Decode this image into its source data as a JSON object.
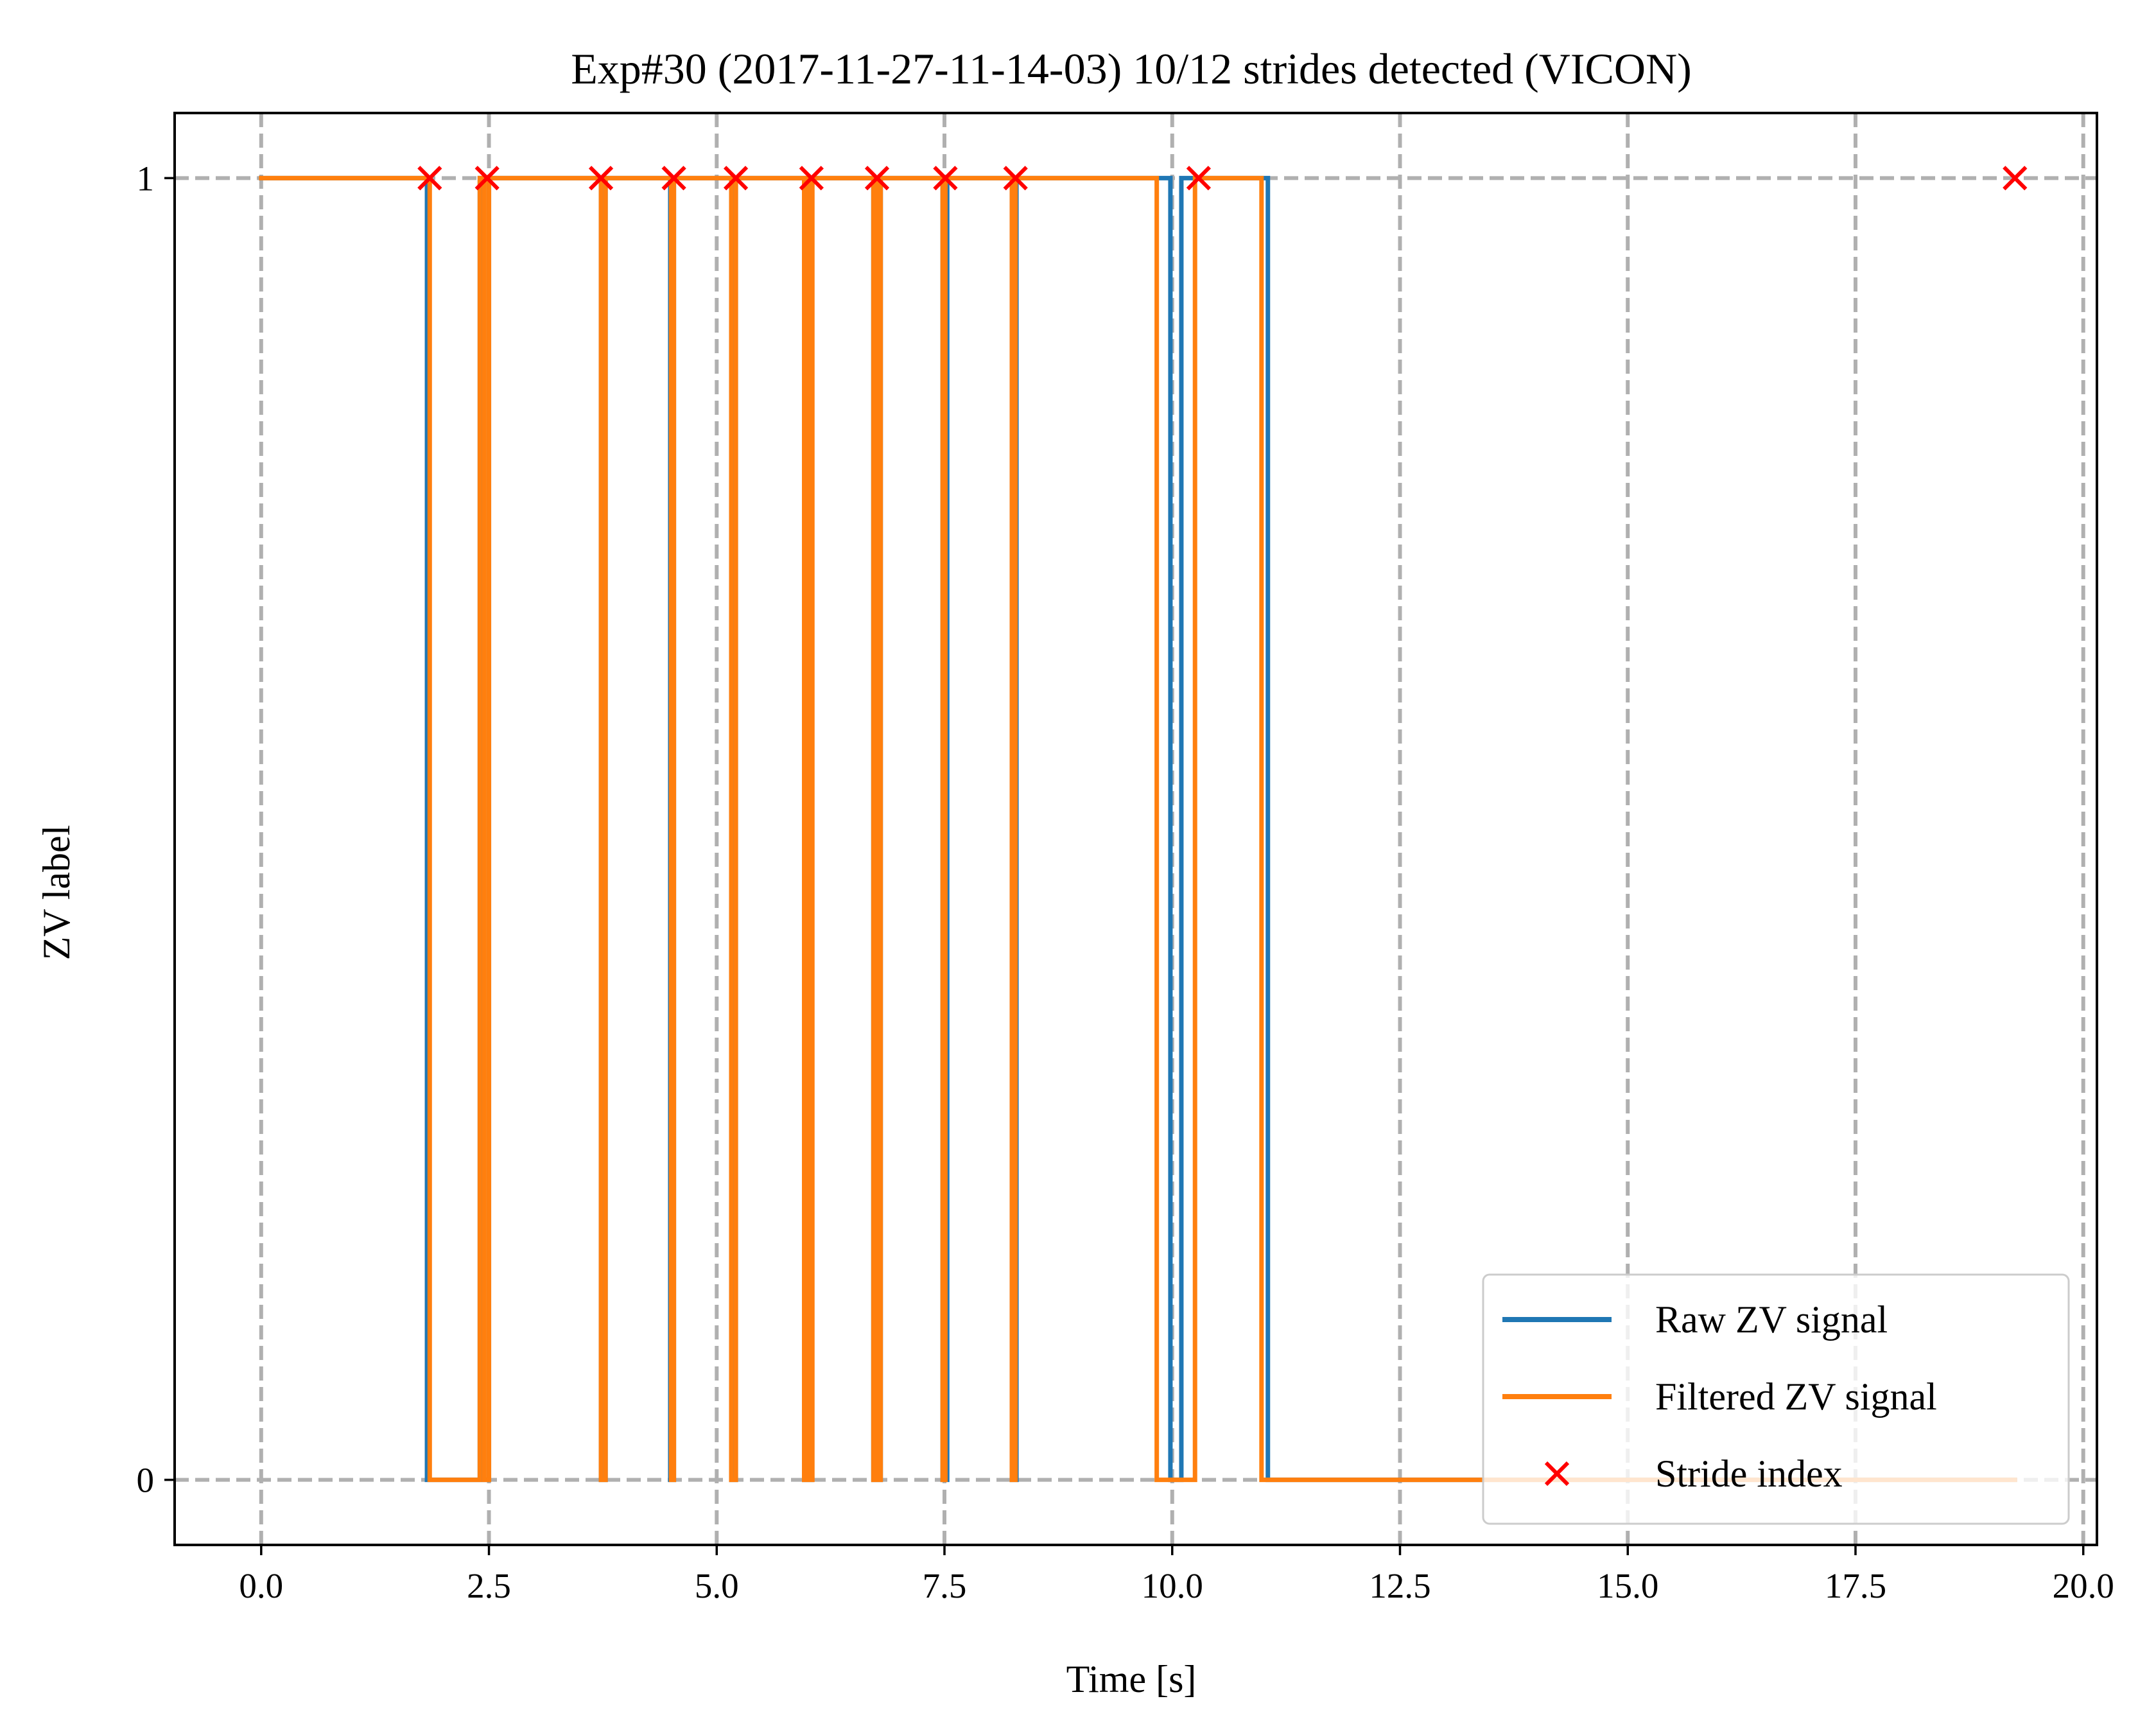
{
  "chart_data": {
    "type": "line",
    "title": "Exp#30 (2017-11-27-11-14-03) 10/12 strides detected (VICON)",
    "xlabel": "Time [s]",
    "ylabel": "ZV label",
    "xlim": [
      -0.95,
      20.15
    ],
    "ylim": [
      -0.05,
      1.05
    ],
    "xticks": [
      0.0,
      2.5,
      5.0,
      7.5,
      10.0,
      12.5,
      15.0,
      17.5,
      20.0
    ],
    "xtick_labels": [
      "0.0",
      "2.5",
      "5.0",
      "7.5",
      "10.0",
      "12.5",
      "15.0",
      "17.5",
      "20.0"
    ],
    "yticks": [
      0,
      1
    ],
    "ytick_labels": [
      "0",
      "1"
    ],
    "grid": true,
    "legend_position": "lower-right",
    "series": [
      {
        "name": "Raw ZV signal",
        "kind": "step",
        "color": "#1f77b4",
        "x": [
          0.0,
          1.82,
          1.82,
          2.4,
          2.4,
          2.44,
          2.44,
          2.5,
          2.5,
          3.73,
          3.73,
          3.78,
          3.78,
          4.49,
          4.49,
          4.53,
          4.53,
          5.16,
          5.16,
          5.21,
          5.21,
          5.96,
          5.96,
          6.04,
          6.04,
          6.72,
          6.72,
          6.8,
          6.8,
          7.48,
          7.48,
          7.53,
          7.53,
          8.24,
          8.24,
          8.29,
          8.29,
          9.98,
          9.98,
          10.1,
          10.1,
          11.05,
          11.05,
          19.25
        ],
        "y": [
          1,
          1,
          0,
          0,
          1,
          1,
          0,
          0,
          1,
          1,
          0,
          0,
          1,
          1,
          0,
          0,
          1,
          1,
          0,
          0,
          1,
          1,
          0,
          0,
          1,
          1,
          0,
          0,
          1,
          1,
          0,
          0,
          1,
          1,
          0,
          0,
          1,
          1,
          0,
          0,
          1,
          1,
          0,
          0
        ]
      },
      {
        "name": "Filtered ZV signal",
        "kind": "step",
        "color": "#ff7f0e",
        "x": [
          0.0,
          1.85,
          1.85,
          2.4,
          2.4,
          2.45,
          2.45,
          2.5,
          2.5,
          3.73,
          3.73,
          3.78,
          3.78,
          4.5,
          4.5,
          4.53,
          4.53,
          5.16,
          5.16,
          5.21,
          5.21,
          5.96,
          5.96,
          6.0,
          6.0,
          6.02,
          6.02,
          6.05,
          6.05,
          6.72,
          6.72,
          6.75,
          6.75,
          6.77,
          6.77,
          6.8,
          6.8,
          7.48,
          7.48,
          7.51,
          7.51,
          8.24,
          8.24,
          8.28,
          8.28,
          9.83,
          9.83,
          10.25,
          10.25,
          10.98,
          10.98,
          19.25
        ],
        "y": [
          1,
          1,
          0,
          0,
          1,
          1,
          0,
          0,
          1,
          1,
          0,
          0,
          1,
          1,
          0,
          0,
          1,
          1,
          0,
          0,
          1,
          1,
          0,
          0,
          1,
          1,
          0,
          0,
          1,
          1,
          0,
          0,
          1,
          1,
          0,
          0,
          1,
          1,
          0,
          0,
          1,
          1,
          0,
          0,
          1,
          1,
          0,
          0,
          1,
          1,
          0,
          0
        ]
      },
      {
        "name": "Stride index",
        "kind": "scatter",
        "marker": "x",
        "color": "#ff0000",
        "x": [
          1.85,
          2.48,
          3.73,
          4.53,
          5.21,
          6.04,
          6.76,
          7.51,
          8.28,
          10.29,
          19.25
        ],
        "y": [
          1,
          1,
          1,
          1,
          1,
          1,
          1,
          1,
          1,
          1,
          1
        ]
      }
    ],
    "colors": {
      "grid": "#b0b0b0",
      "axes": "#000000",
      "background": "#ffffff"
    }
  }
}
